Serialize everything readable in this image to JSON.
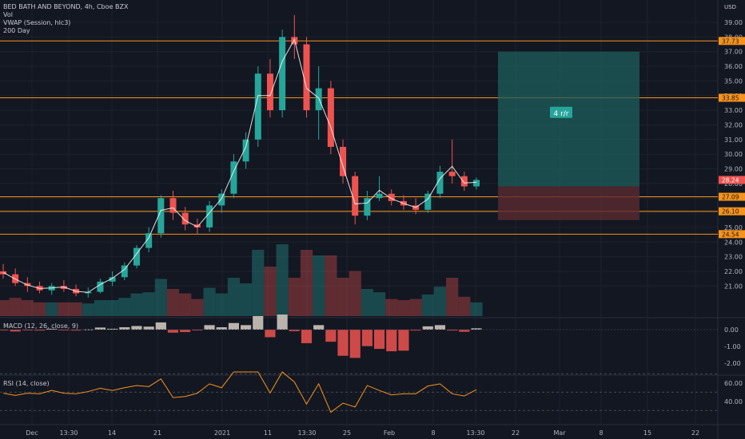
{
  "legend": {
    "symbol": "BED BATH AND BEYOND, 4h, Cboe BZX",
    "vol": "Vol",
    "vwap": "VWAP (Session, hlc3)",
    "ma": "200 Day"
  },
  "macd_label": "MACD (12, 26, close, 9)",
  "rsi_label": "RSI (14, close)",
  "position_box_label": "4 r/r",
  "currency": "USD",
  "colors": {
    "background": "#131722",
    "up": "#26a69a",
    "down": "#ef5350",
    "hline": "#f7931a",
    "vwap": "#ffffff",
    "target_zone": "#1e5f5c",
    "stop_zone": "#5a2a31",
    "macd_line": "#2962ff",
    "signal_line": "#f7931a",
    "rsi_line": "#f7931a"
  },
  "chart_data": {
    "type": "candlestick",
    "price_axis_ticks": [
      "39.00",
      "38.00",
      "37.00",
      "36.00",
      "35.00",
      "34.00",
      "33.00",
      "32.00",
      "31.00",
      "30.00",
      "29.00",
      "28.00",
      "27.00",
      "26.00",
      "25.00",
      "24.00",
      "23.00",
      "22.00",
      "21.00"
    ],
    "macd_axis_ticks": [
      "0.00",
      "-1.00",
      "-2.00"
    ],
    "rsi_axis_ticks": [
      "60.00",
      "40.00"
    ],
    "time_axis_ticks": [
      "Dec",
      "13:30",
      "14",
      "21",
      "2021",
      "11",
      "13:30",
      "25",
      "Feb",
      "8",
      "13:30",
      "22",
      "Mar",
      "8",
      "15",
      "22"
    ],
    "horizontal_levels": [
      {
        "price": 37.73,
        "label": "37.73"
      },
      {
        "price": 33.85,
        "label": "33.85"
      },
      {
        "price": 27.09,
        "label": "27.09"
      },
      {
        "price": 26.1,
        "label": "26.10"
      },
      {
        "price": 24.54,
        "label": "24.54"
      }
    ],
    "current_price": {
      "price": 28.24,
      "label": "28.24"
    },
    "position": {
      "entry": 27.8,
      "target": 37.0,
      "stop": 25.5,
      "label": "4 r/r"
    },
    "candles_approx": [
      [
        22.0,
        22.5,
        21.5,
        21.8
      ],
      [
        21.8,
        22.2,
        21.0,
        21.2
      ],
      [
        21.2,
        21.6,
        20.6,
        21.0
      ],
      [
        21.0,
        21.3,
        20.5,
        20.7
      ],
      [
        20.7,
        21.2,
        20.4,
        21.0
      ],
      [
        21.0,
        21.4,
        20.6,
        20.8
      ],
      [
        20.8,
        21.1,
        20.3,
        20.5
      ],
      [
        20.5,
        20.9,
        20.2,
        20.6
      ],
      [
        20.6,
        21.5,
        20.5,
        21.3
      ],
      [
        21.3,
        22.0,
        21.0,
        21.6
      ],
      [
        21.6,
        22.6,
        21.4,
        22.4
      ],
      [
        22.4,
        23.8,
        22.2,
        23.6
      ],
      [
        23.6,
        25.0,
        23.3,
        24.6
      ],
      [
        24.6,
        27.2,
        24.3,
        27.0
      ],
      [
        27.0,
        27.5,
        25.5,
        26.0
      ],
      [
        26.0,
        26.4,
        24.8,
        25.2
      ],
      [
        25.2,
        25.6,
        24.5,
        25.0
      ],
      [
        25.0,
        26.8,
        24.7,
        26.5
      ],
      [
        26.5,
        27.6,
        26.0,
        27.3
      ],
      [
        27.3,
        30.0,
        27.0,
        29.5
      ],
      [
        29.5,
        31.5,
        29.0,
        31.0
      ],
      [
        31.0,
        36.0,
        30.5,
        35.5
      ],
      [
        35.5,
        36.5,
        32.5,
        33.0
      ],
      [
        33.0,
        38.5,
        32.5,
        38.0
      ],
      [
        38.0,
        39.5,
        36.5,
        37.5
      ],
      [
        37.5,
        38.0,
        32.5,
        33.0
      ],
      [
        33.0,
        36.0,
        31.0,
        34.5
      ],
      [
        34.5,
        35.0,
        30.0,
        30.5
      ],
      [
        30.5,
        31.0,
        28.0,
        28.5
      ],
      [
        28.5,
        28.8,
        25.2,
        25.8
      ],
      [
        25.8,
        27.5,
        25.5,
        27.0
      ],
      [
        27.0,
        28.5,
        26.8,
        27.3
      ],
      [
        27.3,
        27.6,
        26.5,
        26.8
      ],
      [
        26.8,
        27.2,
        26.2,
        26.5
      ],
      [
        26.5,
        27.0,
        25.9,
        26.2
      ],
      [
        26.2,
        27.5,
        26.0,
        27.3
      ],
      [
        27.3,
        29.2,
        27.0,
        28.8
      ],
      [
        28.8,
        31.0,
        28.0,
        28.5
      ],
      [
        28.5,
        28.8,
        27.5,
        27.8
      ],
      [
        27.8,
        28.4,
        27.6,
        28.24
      ]
    ]
  }
}
